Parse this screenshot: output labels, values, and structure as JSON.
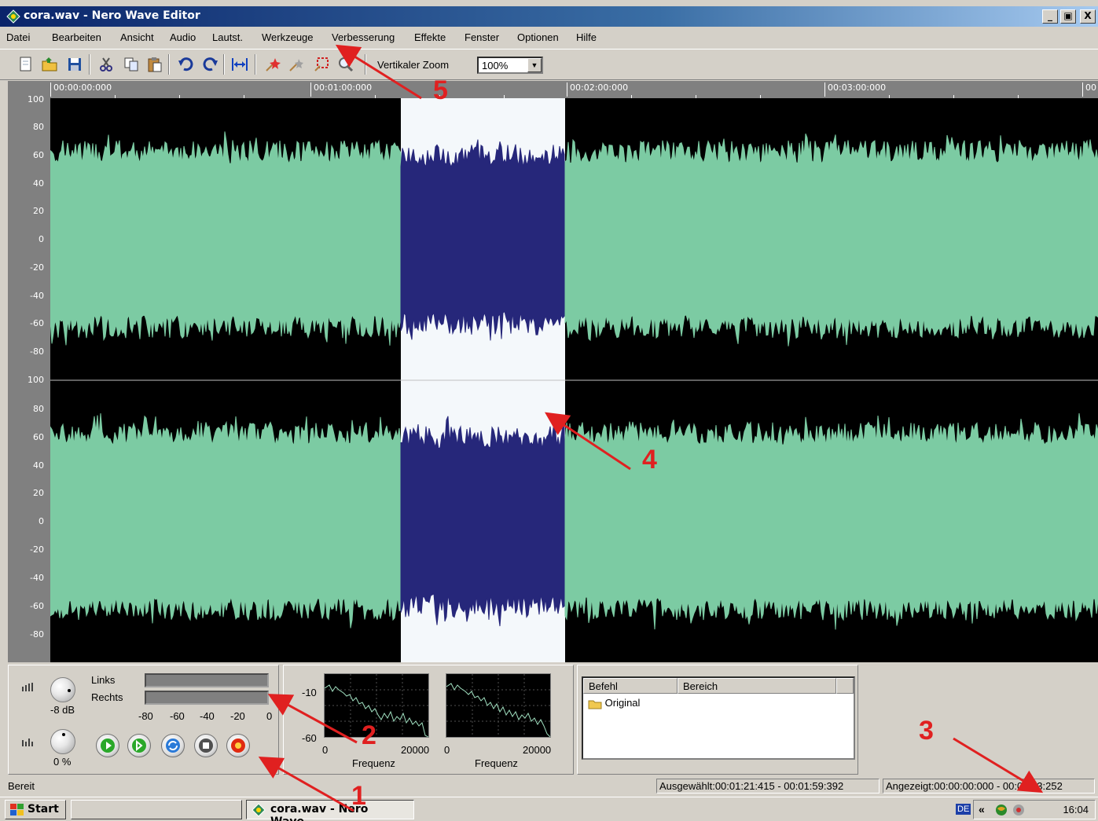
{
  "window": {
    "title": "cora.wav - Nero Wave Editor",
    "minimize": "_",
    "maximize": "▣",
    "close": "X"
  },
  "menu": [
    "Datei",
    "Bearbeiten",
    "Ansicht",
    "Audio",
    "Lautst.",
    "Werkzeuge",
    "Verbesserung",
    "Effekte",
    "Fenster",
    "Optionen",
    "Hilfe"
  ],
  "toolbar": {
    "zoom_label": "Vertikaler Zoom",
    "zoom_value": "100%"
  },
  "ruler": [
    "00:00:00:000",
    "00:01:00:000",
    "00:02:00:000",
    "00:03:00:000",
    "00"
  ],
  "yaxis": [
    "100",
    "80",
    "60",
    "40",
    "20",
    "0",
    "-20",
    "-40",
    "-60",
    "-80"
  ],
  "mixer": {
    "left_label": "Links",
    "right_label": "Rechts",
    "volume": "-8 dB",
    "balance": "0 %",
    "scale": [
      "-80",
      "-60",
      "-40",
      "-20",
      "0"
    ],
    "db_label": "dB"
  },
  "spectrum": {
    "y_top": "-10",
    "y_bottom": "-60",
    "x_start": "0",
    "x_end": "20000",
    "x_label": "Frequenz"
  },
  "history": {
    "col_command": "Befehl",
    "col_range": "Bereich",
    "items": [
      "Original"
    ]
  },
  "status": {
    "ready": "Bereit",
    "selected": "Ausgewählt:00:01:21:415 - 00:01:59:392",
    "displayed": "Angezeigt:00:00:00:000 - 00:04:03:252"
  },
  "taskbar": {
    "start": "Start",
    "task": "cora.wav - Nero Wave...",
    "lang": "DE",
    "tray_arrows": "«",
    "clock": "16:04"
  },
  "annotations": [
    "1",
    "2",
    "3",
    "4",
    "5"
  ],
  "colors": {
    "wave": "#7ccba3",
    "selection_bg": "#f4f8fb",
    "selection_wave": "#26277a",
    "titlebar": "#0a246a",
    "annotation": "#e02020"
  }
}
